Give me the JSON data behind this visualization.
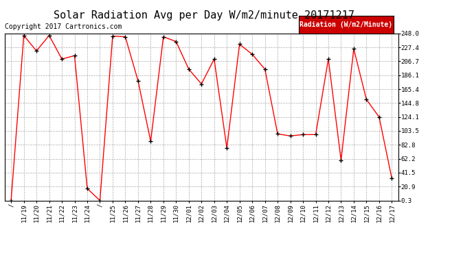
{
  "title": "Solar Radiation Avg per Day W/m2/minute 20171217",
  "copyright": "Copyright 2017 Cartronics.com",
  "legend_label": "Radiation (W/m2/Minute)",
  "labels": [
    "/",
    "11/19",
    "11/20",
    "11/21",
    "11/22",
    "11/23",
    "11/24",
    "/",
    "11/25",
    "11/26",
    "11/27",
    "11/28",
    "11/29",
    "11/30",
    "12/01",
    "12/02",
    "12/03",
    "12/04",
    "12/05",
    "12/06",
    "12/07",
    "12/08",
    "12/09",
    "12/10",
    "12/11",
    "12/12",
    "12/13",
    "12/14",
    "12/15",
    "12/16",
    "12/17"
  ],
  "values": [
    0.3,
    245.0,
    222.0,
    245.0,
    210.0,
    215.0,
    18.0,
    0.3,
    244.0,
    243.0,
    178.0,
    88.0,
    243.0,
    236.0,
    195.0,
    173.0,
    210.0,
    78.0,
    232.0,
    217.0,
    195.0,
    99.0,
    96.0,
    98.0,
    98.0,
    210.0,
    60.0,
    225.0,
    150.0,
    124.0,
    33.0
  ],
  "ylim_min": 0.3,
  "ylim_max": 248.0,
  "yticks": [
    0.3,
    20.9,
    41.5,
    62.2,
    82.8,
    103.5,
    124.1,
    144.8,
    165.4,
    186.1,
    206.7,
    227.4,
    248.0
  ],
  "line_color": "#ff0000",
  "marker_color": "#000000",
  "bg_color": "#ffffff",
  "grid_color": "#aaaaaa",
  "title_fontsize": 11,
  "tick_fontsize": 6.5,
  "copyright_fontsize": 7,
  "legend_bg": "#cc0000",
  "legend_text_color": "#ffffff",
  "legend_fontsize": 7
}
